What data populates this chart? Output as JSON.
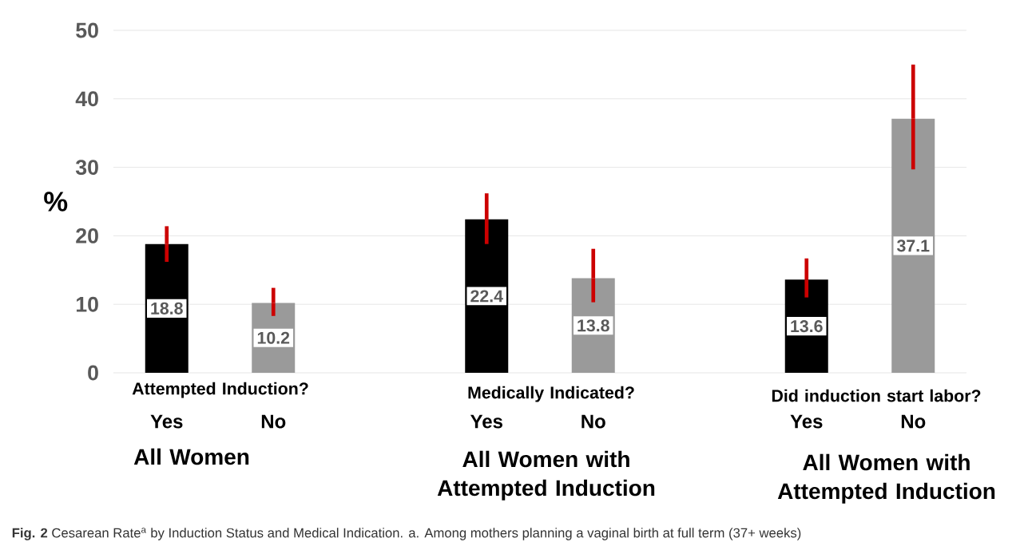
{
  "chart_data": {
    "type": "bar",
    "ylabel": "%",
    "categories": [
      "Yes",
      "No",
      null,
      "Yes",
      "No",
      null,
      "Yes",
      "No"
    ],
    "values": [
      18.8,
      10.2,
      null,
      22.4,
      13.8,
      null,
      13.6,
      37.1
    ],
    "colors": [
      "#000000",
      "#9a9a9a",
      null,
      "#000000",
      "#9a9a9a",
      null,
      "#000000",
      "#9a9a9a"
    ],
    "errors": [
      [
        16.2,
        21.4
      ],
      [
        8.3,
        12.4
      ],
      null,
      [
        18.8,
        26.2
      ],
      [
        10.3,
        18.1
      ],
      null,
      [
        11.0,
        16.7
      ],
      [
        29.7,
        45.0
      ]
    ],
    "value_labels": [
      "18.8",
      "10.2",
      null,
      "22.4",
      "13.8",
      null,
      "13.6",
      "37.1"
    ],
    "ylim": [
      0,
      50
    ],
    "yticks": [
      0,
      10,
      20,
      30,
      40,
      50
    ],
    "grid": "y",
    "annotations": [
      "Attempted Induction?",
      "All Women",
      "Medically Indicated?",
      "All Women with Attempted Induction",
      "Did induction start labor?",
      "All Women with Attempted Induction",
      "**Fig. 2** Cesarean Rate$^{a}$ by Induction Status and Medical Indication. a. Among mothers planning a vaginal birth at full term (37+ weeks)"
    ]
  }
}
